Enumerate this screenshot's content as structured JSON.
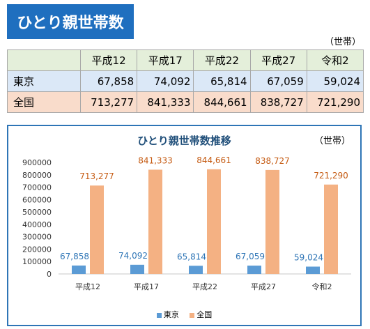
{
  "header": {
    "title": "ひとり親世帯数"
  },
  "table": {
    "unit": "（世帯）",
    "columns": [
      "平成12",
      "平成17",
      "平成22",
      "平成27",
      "令和2"
    ],
    "rows": [
      {
        "label": "東京",
        "values": [
          "67,858",
          "74,092",
          "65,814",
          "67,059",
          "59,024"
        ]
      },
      {
        "label": "全国",
        "values": [
          "713,277",
          "841,333",
          "844,661",
          "838,727",
          "721,290"
        ]
      }
    ]
  },
  "chart_data": {
    "type": "bar",
    "title": "ひとり親世帯数推移",
    "unit": "（世帯）",
    "categories": [
      "平成12",
      "平成17",
      "平成22",
      "平成27",
      "令和2"
    ],
    "series": [
      {
        "name": "東京",
        "values": [
          67858,
          74092,
          65814,
          67059,
          59024
        ],
        "labels": [
          "67,858",
          "74,092",
          "65,814",
          "67,059",
          "59,024"
        ],
        "color": "#5b9bd5",
        "label_color": "#2e75b6"
      },
      {
        "name": "全国",
        "values": [
          713277,
          841333,
          844661,
          838727,
          721290
        ],
        "labels": [
          "713,277",
          "841,333",
          "844,661",
          "838,727",
          "721,290"
        ],
        "color": "#f4b183",
        "label_color": "#c55a11"
      }
    ],
    "yticks": [
      0,
      100000,
      200000,
      300000,
      400000,
      500000,
      600000,
      700000,
      800000,
      900000
    ],
    "ytick_labels": [
      "0",
      "100000",
      "200000",
      "300000",
      "400000",
      "500000",
      "600000",
      "700000",
      "800000",
      "900000"
    ],
    "ylim": [
      0,
      900000
    ],
    "legend": "bottom",
    "grid": false
  }
}
